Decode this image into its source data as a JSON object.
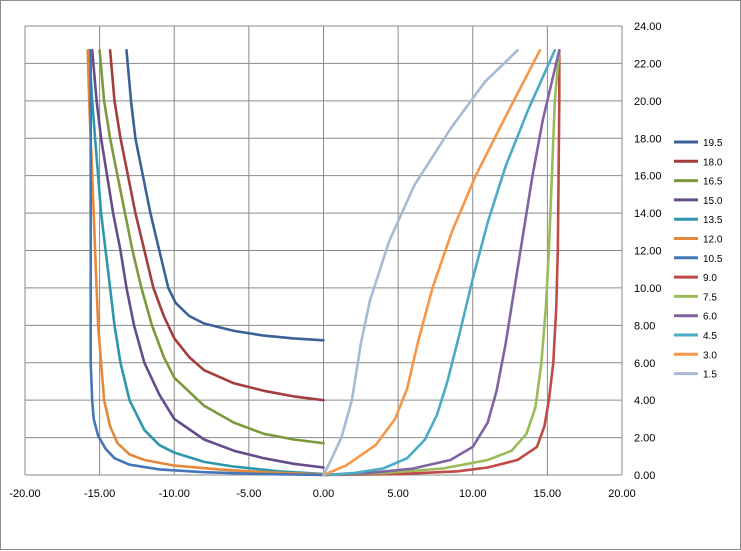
{
  "chart_data": {
    "type": "line",
    "title": "",
    "xlabel": "",
    "ylabel": "",
    "xlim": [
      -20,
      20
    ],
    "ylim": [
      0,
      24
    ],
    "x_ticks": [
      "-20.00",
      "-15.00",
      "-10.00",
      "-5.00",
      "0.00",
      "5.00",
      "10.00",
      "15.00",
      "20.00"
    ],
    "y_ticks": [
      "0.00",
      "2.00",
      "4.00",
      "6.00",
      "8.00",
      "10.00",
      "12.00",
      "14.00",
      "16.00",
      "18.00",
      "20.00",
      "22.00",
      "24.00"
    ],
    "grid": "on",
    "legend_position": "right",
    "series": [
      {
        "name": "19.5",
        "color": "#3b6296",
        "points": [
          [
            -13.2,
            22.7
          ],
          [
            -12.9,
            20
          ],
          [
            -12.6,
            18
          ],
          [
            -12.1,
            16
          ],
          [
            -11.6,
            14
          ],
          [
            -11,
            12
          ],
          [
            -10.4,
            10
          ],
          [
            -9.9,
            9.2
          ],
          [
            -9,
            8.5
          ],
          [
            -8,
            8.1
          ],
          [
            -6,
            7.7
          ],
          [
            -4,
            7.45
          ],
          [
            -2,
            7.3
          ],
          [
            0,
            7.2
          ]
        ]
      },
      {
        "name": "18.0",
        "color": "#a23e3c",
        "points": [
          [
            -14.3,
            22.7
          ],
          [
            -14,
            20
          ],
          [
            -13.6,
            18
          ],
          [
            -13.1,
            16
          ],
          [
            -12.6,
            14
          ],
          [
            -12,
            12
          ],
          [
            -11.4,
            10
          ],
          [
            -10.7,
            8.5
          ],
          [
            -10,
            7.3
          ],
          [
            -9,
            6.3
          ],
          [
            -8,
            5.6
          ],
          [
            -6,
            4.9
          ],
          [
            -4,
            4.5
          ],
          [
            -2,
            4.2
          ],
          [
            0,
            4.0
          ]
        ]
      },
      {
        "name": "16.5",
        "color": "#7c9a3d",
        "points": [
          [
            -15.0,
            22.7
          ],
          [
            -14.7,
            20
          ],
          [
            -14.3,
            18
          ],
          [
            -13.8,
            16
          ],
          [
            -13.3,
            14
          ],
          [
            -12.8,
            12
          ],
          [
            -12.2,
            10
          ],
          [
            -11.5,
            8
          ],
          [
            -10.7,
            6.3
          ],
          [
            -10,
            5.2
          ],
          [
            -8,
            3.7
          ],
          [
            -6,
            2.8
          ],
          [
            -4,
            2.2
          ],
          [
            -2,
            1.9
          ],
          [
            0,
            1.7
          ]
        ]
      },
      {
        "name": "15.0",
        "color": "#644d8a",
        "points": [
          [
            -15.5,
            22.7
          ],
          [
            -15.2,
            20
          ],
          [
            -14.9,
            18
          ],
          [
            -14.5,
            16
          ],
          [
            -14.1,
            14
          ],
          [
            -13.6,
            12
          ],
          [
            -13.2,
            10
          ],
          [
            -12.7,
            8
          ],
          [
            -12,
            6
          ],
          [
            -11,
            4.3
          ],
          [
            -10,
            3.0
          ],
          [
            -8,
            1.9
          ],
          [
            -6,
            1.3
          ],
          [
            -4,
            0.9
          ],
          [
            -2,
            0.6
          ],
          [
            0,
            0.4
          ]
        ]
      },
      {
        "name": "13.5",
        "color": "#2e97ac",
        "points": [
          [
            -15.7,
            22.7
          ],
          [
            -15.5,
            20
          ],
          [
            -15.3,
            18
          ],
          [
            -15.1,
            16
          ],
          [
            -14.9,
            14
          ],
          [
            -14.6,
            12
          ],
          [
            -14.3,
            10
          ],
          [
            -14.0,
            8
          ],
          [
            -13.6,
            6
          ],
          [
            -13,
            4
          ],
          [
            -12,
            2.4
          ],
          [
            -11,
            1.6
          ],
          [
            -10,
            1.2
          ],
          [
            -8,
            0.7
          ],
          [
            -6,
            0.45
          ],
          [
            -3,
            0.2
          ],
          [
            0,
            0.05
          ]
        ]
      },
      {
        "name": "12.0",
        "color": "#e5883a",
        "points": [
          [
            -15.8,
            22.7
          ],
          [
            -15.7,
            20
          ],
          [
            -15.6,
            18
          ],
          [
            -15.5,
            16
          ],
          [
            -15.4,
            14
          ],
          [
            -15.3,
            12
          ],
          [
            -15.2,
            10
          ],
          [
            -15.1,
            8
          ],
          [
            -14.9,
            6
          ],
          [
            -14.7,
            4
          ],
          [
            -14.3,
            2.6
          ],
          [
            -13.8,
            1.7
          ],
          [
            -13,
            1.1
          ],
          [
            -12,
            0.8
          ],
          [
            -10,
            0.5
          ],
          [
            -7,
            0.3
          ],
          [
            -4,
            0.15
          ],
          [
            0,
            0.02
          ]
        ]
      },
      {
        "name": "10.5",
        "color": "#4577b8",
        "points": [
          [
            -15.6,
            22.7
          ],
          [
            -15.6,
            20
          ],
          [
            -15.6,
            18
          ],
          [
            -15.6,
            16
          ],
          [
            -15.6,
            14
          ],
          [
            -15.6,
            12
          ],
          [
            -15.6,
            10
          ],
          [
            -15.6,
            8
          ],
          [
            -15.6,
            6
          ],
          [
            -15.5,
            4
          ],
          [
            -15.4,
            3.0
          ],
          [
            -15.1,
            2.1
          ],
          [
            -14.6,
            1.4
          ],
          [
            -14,
            0.9
          ],
          [
            -13,
            0.55
          ],
          [
            -11,
            0.3
          ],
          [
            -8,
            0.15
          ],
          [
            -4,
            0.05
          ],
          [
            0,
            0
          ]
        ]
      },
      {
        "name": "9.0",
        "color": "#be4b48",
        "points": [
          [
            0,
            0
          ],
          [
            5,
            0.05
          ],
          [
            9,
            0.2
          ],
          [
            11,
            0.4
          ],
          [
            13,
            0.8
          ],
          [
            14.3,
            1.5
          ],
          [
            14.8,
            2.6
          ],
          [
            15.1,
            4
          ],
          [
            15.4,
            6
          ],
          [
            15.6,
            9
          ],
          [
            15.7,
            12
          ],
          [
            15.75,
            16
          ],
          [
            15.8,
            20
          ],
          [
            15.8,
            22.7
          ]
        ]
      },
      {
        "name": "7.5",
        "color": "#9bbb59",
        "points": [
          [
            0,
            0
          ],
          [
            4,
            0.1
          ],
          [
            8,
            0.35
          ],
          [
            11,
            0.8
          ],
          [
            12.6,
            1.3
          ],
          [
            13.6,
            2.2
          ],
          [
            14.2,
            3.6
          ],
          [
            14.6,
            6
          ],
          [
            14.9,
            9
          ],
          [
            15.1,
            12
          ],
          [
            15.3,
            16
          ],
          [
            15.5,
            20
          ],
          [
            15.8,
            22.7
          ]
        ]
      },
      {
        "name": "6.0",
        "color": "#8064a2",
        "points": [
          [
            0,
            0
          ],
          [
            3,
            0.1
          ],
          [
            6,
            0.35
          ],
          [
            8.5,
            0.8
          ],
          [
            10,
            1.5
          ],
          [
            11,
            2.8
          ],
          [
            11.6,
            4.5
          ],
          [
            12.2,
            7
          ],
          [
            12.8,
            10
          ],
          [
            13.4,
            13
          ],
          [
            14,
            16
          ],
          [
            14.7,
            19
          ],
          [
            15.8,
            22.7
          ]
        ]
      },
      {
        "name": "4.5",
        "color": "#4bacc6",
        "points": [
          [
            0,
            0
          ],
          [
            2,
            0.1
          ],
          [
            4,
            0.35
          ],
          [
            5.6,
            0.9
          ],
          [
            6.8,
            1.9
          ],
          [
            7.6,
            3.2
          ],
          [
            8.3,
            5
          ],
          [
            9.1,
            7.5
          ],
          [
            10,
            10.5
          ],
          [
            11,
            13.5
          ],
          [
            12.2,
            16.5
          ],
          [
            13.7,
            19.5
          ],
          [
            15.5,
            22.7
          ]
        ]
      },
      {
        "name": "3.0",
        "color": "#f79646",
        "points": [
          [
            0,
            0
          ],
          [
            1.5,
            0.5
          ],
          [
            3.5,
            1.6
          ],
          [
            4.8,
            3
          ],
          [
            5.6,
            4.6
          ],
          [
            6.3,
            7
          ],
          [
            7.3,
            10
          ],
          [
            8.6,
            13
          ],
          [
            10.2,
            16
          ],
          [
            12.1,
            19
          ],
          [
            14.5,
            22.7
          ]
        ]
      },
      {
        "name": "1.5",
        "color": "#a7b9d6",
        "points": [
          [
            0,
            0
          ],
          [
            0.5,
            0.8
          ],
          [
            1.2,
            2
          ],
          [
            1.9,
            4
          ],
          [
            2.5,
            7
          ],
          [
            3.1,
            9.3
          ],
          [
            4.4,
            12.5
          ],
          [
            6.1,
            15.5
          ],
          [
            8.5,
            18.5
          ],
          [
            10.8,
            21
          ],
          [
            13,
            22.7
          ]
        ]
      }
    ]
  }
}
